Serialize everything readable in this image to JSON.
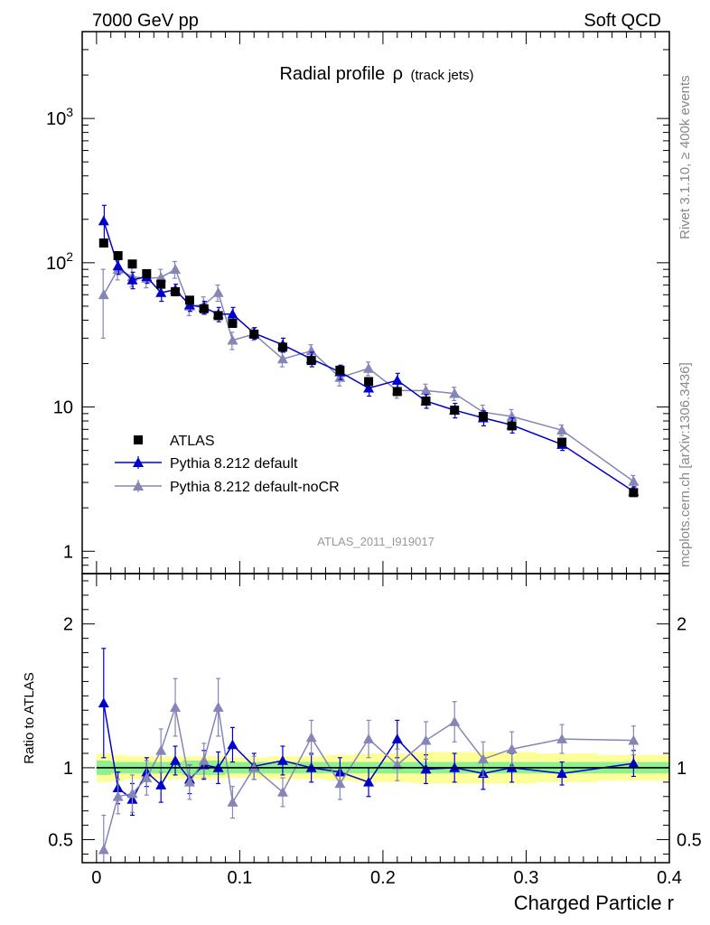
{
  "header": {
    "left": "7000 GeV pp",
    "right": "Soft QCD"
  },
  "side_labels": {
    "rivet": "Rivet 3.1.10, ≥ 400k events",
    "mcplots": "mcplots.cern.ch [arXiv:1306.3436]"
  },
  "chart_data": [
    {
      "type": "scatter",
      "panel": "main",
      "title": "Radial profile ρ (track jets)",
      "title_main": "Radial profile",
      "title_symbol": "ρ",
      "title_sub": "(track jets)",
      "analysis_id": "ATLAS_2011_I919017",
      "xlabel": "",
      "ylabel": "",
      "xlim": [
        -0.01,
        0.4
      ],
      "ylim": [
        0.7,
        4000
      ],
      "y_scale": "log",
      "x": [
        0.005,
        0.015,
        0.025,
        0.035,
        0.045,
        0.055,
        0.065,
        0.075,
        0.085,
        0.095,
        0.11,
        0.13,
        0.15,
        0.17,
        0.19,
        0.21,
        0.23,
        0.25,
        0.27,
        0.29,
        0.325,
        0.375
      ],
      "y_tick_labels": [
        "1",
        "10",
        "10^2",
        "10^3"
      ],
      "legend_position": "bottom-left",
      "series": [
        {
          "name": "ATLAS",
          "marker": "square",
          "color": "#000000",
          "values": [
            137,
            112,
            98,
            84,
            71,
            63,
            55,
            48,
            43,
            38,
            32,
            26,
            21,
            18,
            15,
            12.8,
            11,
            9.5,
            8.6,
            7.4,
            5.7,
            2.55
          ]
        },
        {
          "name": "Pythia 8.212 default",
          "marker": "triangle",
          "color": "#0000cc",
          "values": [
            195,
            95,
            76,
            80,
            62,
            65,
            51,
            49,
            44,
            44,
            32.5,
            27,
            21.5,
            17.5,
            13.5,
            15.3,
            11,
            9.5,
            8.4,
            7.5,
            5.5,
            2.6
          ],
          "errors": [
            55,
            12,
            10,
            8,
            8,
            6,
            5,
            5,
            5,
            5,
            3,
            3,
            2.5,
            2,
            1.6,
            1.8,
            1.2,
            1.1,
            1,
            0.9,
            0.5,
            0.2
          ]
        },
        {
          "name": "Pythia 8.212 default-noCR",
          "marker": "triangle",
          "color": "#8585b8",
          "values": [
            60,
            90,
            80,
            78,
            79,
            90,
            50,
            51,
            62,
            29,
            32,
            21.5,
            24.5,
            16,
            18.5,
            13,
            13,
            12.4,
            9.2,
            8.6,
            6.9,
            3.05
          ],
          "errors": [
            30,
            14,
            12,
            11,
            11,
            12,
            7,
            7,
            8,
            4,
            3,
            2.5,
            2.5,
            2,
            2,
            1.5,
            1.4,
            1.3,
            1.1,
            1,
            0.6,
            0.3
          ]
        }
      ]
    },
    {
      "type": "line",
      "panel": "ratio",
      "ylabel": "Ratio to ATLAS",
      "xlabel": "Charged Particle r",
      "xlim": [
        -0.01,
        0.4
      ],
      "ylim": [
        0.34,
        2.35
      ],
      "x": [
        0.005,
        0.015,
        0.025,
        0.035,
        0.045,
        0.055,
        0.065,
        0.075,
        0.085,
        0.095,
        0.11,
        0.13,
        0.15,
        0.17,
        0.19,
        0.21,
        0.23,
        0.25,
        0.27,
        0.29,
        0.325,
        0.375
      ],
      "x_tick_labels": [
        "0",
        "0.1",
        "0.2",
        "0.3",
        "0.4"
      ],
      "y_tick_labels": [
        "0.5",
        "1",
        "2"
      ],
      "reference_line": 1,
      "band_green": {
        "color": "#8ef08e",
        "lo": [
          0.95,
          0.96,
          0.96,
          0.96,
          0.96,
          0.96,
          0.95,
          0.95,
          0.95,
          0.96,
          0.96,
          0.96,
          0.96,
          0.96,
          0.96,
          0.96,
          0.96,
          0.96,
          0.96,
          0.96,
          0.96,
          0.96
        ],
        "hi": [
          1.05,
          1.04,
          1.04,
          1.04,
          1.04,
          1.04,
          1.05,
          1.05,
          1.05,
          1.04,
          1.04,
          1.04,
          1.04,
          1.04,
          1.04,
          1.04,
          1.04,
          1.04,
          1.04,
          1.04,
          1.04,
          1.04
        ]
      },
      "band_yellow": {
        "color": "#ffff99",
        "lo": [
          0.9,
          0.91,
          0.92,
          0.92,
          0.92,
          0.92,
          0.92,
          0.92,
          0.92,
          0.93,
          0.93,
          0.92,
          0.92,
          0.91,
          0.9,
          0.9,
          0.89,
          0.89,
          0.89,
          0.89,
          0.9,
          0.91
        ],
        "hi": [
          1.1,
          1.09,
          1.08,
          1.08,
          1.08,
          1.08,
          1.08,
          1.08,
          1.08,
          1.07,
          1.07,
          1.08,
          1.08,
          1.09,
          1.1,
          1.1,
          1.11,
          1.11,
          1.11,
          1.11,
          1.1,
          1.09
        ]
      },
      "series": [
        {
          "name": "Pythia 8.212 default",
          "color": "#0000cc",
          "values": [
            1.45,
            0.86,
            0.78,
            0.97,
            0.88,
            1.05,
            0.92,
            1.02,
            1.0,
            1.16,
            1.01,
            1.05,
            1.0,
            0.97,
            0.9,
            1.2,
            0.99,
            1.0,
            0.96,
            1.0,
            0.96,
            1.03
          ],
          "errors": [
            0.38,
            0.11,
            0.11,
            0.1,
            0.12,
            0.1,
            0.1,
            0.1,
            0.11,
            0.12,
            0.09,
            0.1,
            0.1,
            0.1,
            0.1,
            0.13,
            0.1,
            0.1,
            0.11,
            0.1,
            0.08,
            0.09
          ]
        },
        {
          "name": "Pythia 8.212 default-noCR",
          "color": "#8585b8",
          "values": [
            0.43,
            0.8,
            0.82,
            0.93,
            1.12,
            1.42,
            0.9,
            1.05,
            1.42,
            0.76,
            1.0,
            0.83,
            1.21,
            0.89,
            1.2,
            1.02,
            1.19,
            1.32,
            1.06,
            1.13,
            1.2,
            1.19
          ],
          "errors": [
            0.24,
            0.12,
            0.13,
            0.12,
            0.15,
            0.2,
            0.12,
            0.12,
            0.2,
            0.11,
            0.08,
            0.1,
            0.12,
            0.11,
            0.13,
            0.11,
            0.13,
            0.14,
            0.12,
            0.12,
            0.1,
            0.1
          ]
        }
      ]
    }
  ]
}
